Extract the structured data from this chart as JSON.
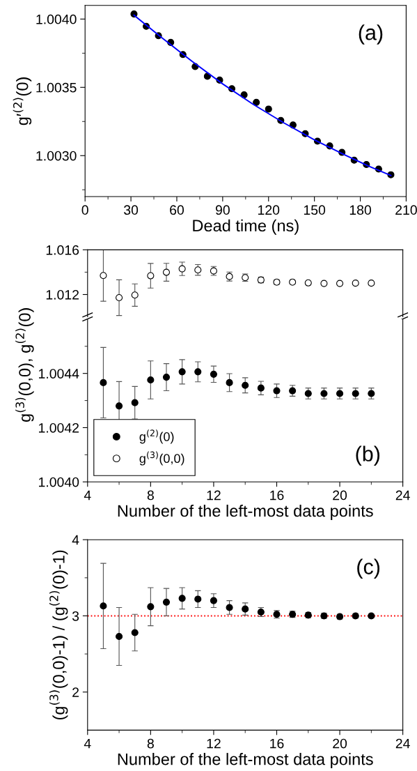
{
  "chart_data": [
    {
      "type": "scatter",
      "xlabel": "Dead time (ns)",
      "ylabel": "g′$^{(2)}$(0)",
      "annotations": [
        "(a)"
      ],
      "marker": "circle",
      "xlim": [
        0,
        210
      ],
      "ylim": [
        1.0027,
        1.0041
      ],
      "xticks": [
        0,
        30,
        60,
        90,
        120,
        150,
        180,
        210,
        {
          "value": 15,
          "label": null
        },
        {
          "value": 45,
          "label": null
        },
        {
          "value": 75,
          "label": null
        },
        {
          "value": 105,
          "label": null
        },
        {
          "value": 135,
          "label": null
        },
        {
          "value": 165,
          "label": null
        },
        {
          "value": 195,
          "label": null
        }
      ],
      "yticks": [
        {
          "value": 1.003,
          "label": "1.0030"
        },
        1.0035,
        {
          "value": 1.004,
          "label": "1.0040"
        },
        {
          "value": 1.00275,
          "label": null
        },
        {
          "value": 1.00325,
          "label": null
        },
        {
          "value": 1.00375,
          "label": null
        }
      ],
      "series": [
        {
          "type": "scatter",
          "color": "#000000",
          "x": [
            32,
            40,
            48,
            56,
            64,
            72,
            80,
            88,
            96,
            104,
            112,
            120,
            128,
            136,
            144,
            152,
            160,
            168,
            176,
            184,
            192,
            200
          ],
          "values": [
            1.004037,
            1.003947,
            1.003878,
            1.003829,
            1.00374,
            1.003652,
            1.003581,
            1.003553,
            1.00349,
            1.003445,
            1.00339,
            1.003341,
            1.003258,
            1.003224,
            1.003161,
            1.003106,
            1.003071,
            1.003024,
            1.002967,
            1.002935,
            1.002902,
            1.00286
          ]
        },
        {
          "type": "line",
          "color": "#0000ff",
          "marker": "none",
          "line_style": "solid",
          "x": [
            32,
            50,
            70,
            90,
            110,
            130,
            150,
            170,
            185,
            200
          ],
          "values": [
            1.004028,
            1.003865,
            1.00369,
            1.003525,
            1.003375,
            1.00324,
            1.003115,
            1.003005,
            1.002925,
            1.002855
          ]
        }
      ]
    },
    {
      "type": "scatter",
      "marker": "circle",
      "legend": "bottom left",
      "tick_labels": "y",
      "xlim": [
        4,
        24
      ],
      "ylim": [
        1.01,
        1.016
      ],
      "xticks": [
        4,
        8,
        12,
        16,
        20,
        24
      ],
      "yticks": [
        1.012,
        1.016,
        {
          "value": 1.014,
          "label": null
        }
      ],
      "series": [
        {
          "type": "scatter",
          "name": "g$^{(3)}$(0,0)",
          "color": "#ffffff",
          "x": [
            5,
            6,
            7,
            8,
            9,
            10,
            11,
            12,
            13,
            14,
            15,
            16,
            17,
            18,
            19,
            20,
            21,
            22
          ],
          "values": [
            1.0137,
            1.01172,
            1.01195,
            1.01368,
            1.01399,
            1.0143,
            1.0142,
            1.01411,
            1.01361,
            1.01351,
            1.0133,
            1.01311,
            1.01311,
            1.01304,
            1.01299,
            1.01299,
            1.01302,
            1.01302
          ],
          "errors": [
            0.0023,
            0.0016,
            0.001,
            0.0011,
            0.0008,
            0.0006,
            0.00048,
            0.0004,
            0.0004,
            0.00033,
            0.00025,
            0.0002,
            0.00015,
            0.00012,
            0.0001,
            0.0001,
            0.0001,
            0.0001
          ]
        }
      ]
    },
    {
      "type": "scatter",
      "xlabel": "Number of the left-most data points",
      "ylabel": "g$^{(3)}$(0,0), g$^{(2)}$(0)",
      "annotations": [
        "(b)"
      ],
      "marker": "circle",
      "legend": "bottom left",
      "xlim": [
        4,
        24
      ],
      "ylim": [
        1.004,
        1.0046
      ],
      "xticks": [
        4,
        8,
        12,
        16,
        20,
        24,
        {
          "value": 6,
          "label": null
        },
        {
          "value": 10,
          "label": null
        },
        {
          "value": 14,
          "label": null
        },
        {
          "value": 18,
          "label": null
        },
        {
          "value": 22,
          "label": null
        }
      ],
      "yticks": [
        {
          "value": 1.004,
          "label": "1.0040"
        },
        1.0042,
        1.0044,
        {
          "value": 1.0041,
          "label": null
        },
        {
          "value": 1.0043,
          "label": null
        },
        {
          "value": 1.0045,
          "label": null
        }
      ],
      "series": [
        {
          "type": "scatter",
          "name": "g$^{(2)}$(0)",
          "color": "#000000",
          "x": [
            5,
            6,
            7,
            8,
            9,
            10,
            11,
            12,
            13,
            14,
            15,
            16,
            17,
            18,
            19,
            20,
            21,
            22
          ],
          "values": [
            1.004366,
            1.00428,
            1.004292,
            1.004376,
            1.004386,
            1.004406,
            1.004406,
            1.004397,
            1.004366,
            1.004356,
            1.004346,
            1.004336,
            1.004336,
            1.004326,
            1.004326,
            1.004326,
            1.004326,
            1.004326
          ],
          "errors": [
            0.00013,
            9e-05,
            6e-05,
            7e-05,
            5e-05,
            4.5e-05,
            3.7e-05,
            3e-05,
            3.3e-05,
            2.8e-05,
            2.5e-05,
            2.5e-05,
            2e-05,
            2e-05,
            2e-05,
            2e-05,
            2e-05,
            2e-05
          ]
        }
      ]
    },
    {
      "type": "scatter",
      "xlabel": "Number of the left-most data points",
      "ylabel": "(g$^{(3)}$(0,0)-1) / (g$^{(2)}$(0)-1)",
      "annotations": [
        "(c)"
      ],
      "marker": "circle",
      "xlim": [
        4,
        24
      ],
      "ylim": [
        1.5,
        4
      ],
      "xticks": [
        4,
        8,
        12,
        16,
        20,
        24,
        {
          "value": 6,
          "label": null
        },
        {
          "value": 10,
          "label": null
        },
        {
          "value": 14,
          "label": null
        },
        {
          "value": 18,
          "label": null
        },
        {
          "value": 22,
          "label": null
        }
      ],
      "yticks": [
        2,
        3,
        4,
        {
          "value": 2.5,
          "label": null
        },
        {
          "value": 3.5,
          "label": null
        }
      ],
      "ref_lines": [
        {
          "axis": "y",
          "value": 3,
          "color": "#ff0000",
          "line_style": "dotted"
        }
      ],
      "series": [
        {
          "type": "scatter",
          "color": "#000000",
          "x": [
            5,
            6,
            7,
            8,
            9,
            10,
            11,
            12,
            13,
            14,
            15,
            16,
            17,
            18,
            19,
            20,
            21,
            22
          ],
          "values": [
            3.13,
            2.73,
            2.78,
            3.12,
            3.18,
            3.23,
            3.22,
            3.2,
            3.11,
            3.09,
            3.05,
            3.02,
            3.02,
            3.01,
            3.0,
            2.99,
            3.0,
            3.0
          ],
          "errors": [
            0.56,
            0.38,
            0.24,
            0.25,
            0.18,
            0.14,
            0.11,
            0.09,
            0.09,
            0.08,
            0.06,
            0.05,
            0.04,
            0.035,
            0.035,
            0.03,
            0.03,
            0.025
          ]
        }
      ]
    }
  ]
}
